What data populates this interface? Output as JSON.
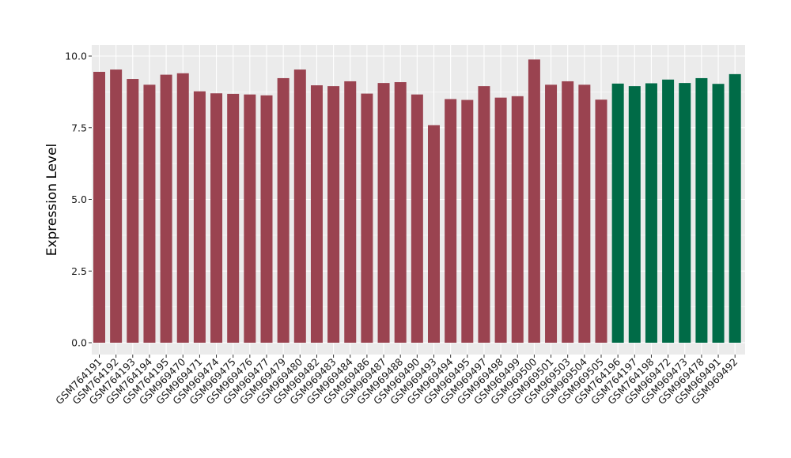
{
  "chart_data": {
    "type": "bar",
    "title": "",
    "xlabel": "",
    "ylabel": "Expression Level",
    "ylim": [
      0,
      10.5
    ],
    "yticks": [
      "0.0",
      "2.5",
      "5.0",
      "7.5",
      "10.0"
    ],
    "ytick_values": [
      0,
      2.5,
      5,
      7.5,
      10
    ],
    "grid": true,
    "legend": "none",
    "colors": {
      "group_a": "#9a4350",
      "group_b": "#006b47",
      "panel": "#ebebeb",
      "gridline": "#ffffff"
    },
    "categories": [
      "GSM764191",
      "GSM764192",
      "GSM764193",
      "GSM764194",
      "GSM764195",
      "GSM969470",
      "GSM969471",
      "GSM969474",
      "GSM969475",
      "GSM969476",
      "GSM969477",
      "GSM969479",
      "GSM969480",
      "GSM969482",
      "GSM969483",
      "GSM969484",
      "GSM969486",
      "GSM969487",
      "GSM969488",
      "GSM969490",
      "GSM969493",
      "GSM969494",
      "GSM969495",
      "GSM969497",
      "GSM969498",
      "GSM969499",
      "GSM969500",
      "GSM969501",
      "GSM969503",
      "GSM969504",
      "GSM969505",
      "GSM764196",
      "GSM764197",
      "GSM764198",
      "GSM969472",
      "GSM969473",
      "GSM969478",
      "GSM969491",
      "GSM969492"
    ],
    "values": [
      9.45,
      9.53,
      9.2,
      9.0,
      9.35,
      9.4,
      8.77,
      8.7,
      8.68,
      8.66,
      8.63,
      9.23,
      9.53,
      8.98,
      8.95,
      9.12,
      8.69,
      9.06,
      9.09,
      8.66,
      7.59,
      8.5,
      8.47,
      8.95,
      8.55,
      8.6,
      9.88,
      9.0,
      9.12,
      9.0,
      8.48,
      9.04,
      8.95,
      9.05,
      9.18,
      9.06,
      9.23,
      9.03,
      9.37
    ],
    "groups": [
      "a",
      "a",
      "a",
      "a",
      "a",
      "a",
      "a",
      "a",
      "a",
      "a",
      "a",
      "a",
      "a",
      "a",
      "a",
      "a",
      "a",
      "a",
      "a",
      "a",
      "a",
      "a",
      "a",
      "a",
      "a",
      "a",
      "a",
      "a",
      "a",
      "a",
      "a",
      "b",
      "b",
      "b",
      "b",
      "b",
      "b",
      "b",
      "b"
    ]
  }
}
